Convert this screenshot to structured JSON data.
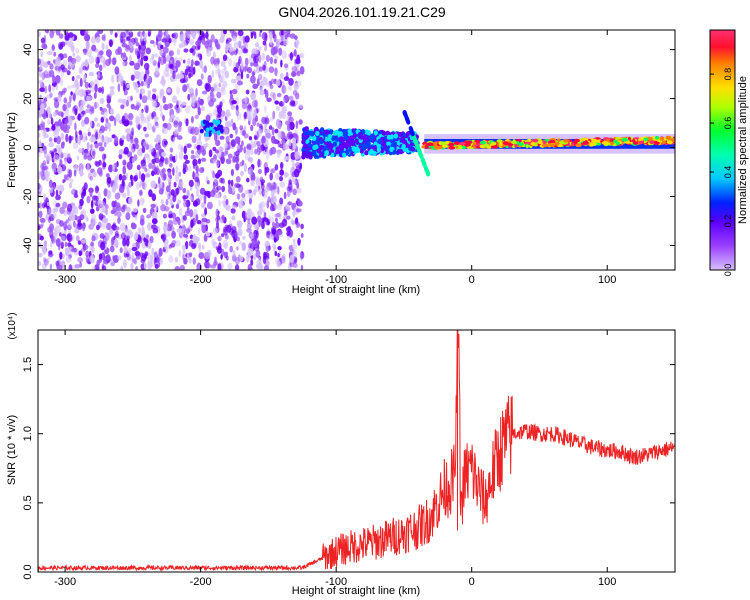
{
  "page": {
    "title": "GN04.2026.101.19.21.C29"
  },
  "chart_data": [
    {
      "type": "heatmap",
      "xlabel": "Height of straight line (km)",
      "ylabel": "Frequency (Hz)",
      "xlim": [
        -320,
        150
      ],
      "ylim": [
        -50,
        48
      ],
      "xticks": [
        -300,
        -200,
        -100,
        0,
        100
      ],
      "yticks": [
        -40,
        -20,
        0,
        20,
        40
      ],
      "colorbar": {
        "label": "Normalized spectral amplitude",
        "range": [
          0.0,
          0.98
        ],
        "ticks": [
          0.0,
          0.2,
          0.4,
          0.6,
          0.8
        ],
        "colormap": [
          "#c9a8ff",
          "#7a00ff",
          "#0000ff",
          "#00e0ff",
          "#00ff60",
          "#b0ff00",
          "#ffe000",
          "#ff8000",
          "#ff0040",
          "#ff3070"
        ]
      },
      "regions": [
        {
          "x_range": [
            -320,
            -125
          ],
          "freq_range": [
            -50,
            48
          ],
          "amplitude": 0.1
        },
        {
          "x_range": [
            -125,
            -40
          ],
          "freq_range": [
            -10,
            10
          ],
          "amplitude": 0.35
        },
        {
          "x_range": [
            -35,
            150
          ],
          "freq_range": [
            -2,
            5
          ],
          "amplitude": 0.75
        }
      ],
      "grid": false
    },
    {
      "type": "line",
      "xlabel": "Height of straight line (km)",
      "ylabel": "SNR (10 * v/v)",
      "y_multiplier": "(x10⁴)",
      "xlim": [
        -320,
        150
      ],
      "ylim": [
        0,
        1.75
      ],
      "xticks": [
        -300,
        -200,
        -100,
        0,
        100
      ],
      "yticks": [
        0.0,
        0.5,
        1.0,
        1.5
      ],
      "ytick_labels": [
        "0.0",
        "0.5",
        "1.0",
        "1.5"
      ],
      "series": [
        {
          "color": "#ee2222",
          "x": [
            -320,
            -300,
            -250,
            -200,
            -150,
            -125,
            -110,
            -100,
            -90,
            -80,
            -70,
            -60,
            -50,
            -40,
            -35,
            -30,
            -25,
            -20,
            -15,
            -12,
            -10,
            -8,
            -5,
            0,
            5,
            10,
            15,
            20,
            25,
            30,
            40,
            50,
            60,
            70,
            80,
            90,
            100,
            110,
            120,
            130,
            140,
            150
          ],
          "y": [
            0.03,
            0.03,
            0.03,
            0.03,
            0.03,
            0.03,
            0.1,
            0.15,
            0.18,
            0.2,
            0.22,
            0.25,
            0.28,
            0.32,
            0.35,
            0.4,
            0.5,
            0.6,
            0.65,
            0.7,
            1.75,
            0.45,
            0.7,
            0.75,
            0.6,
            0.5,
            0.7,
            0.85,
            0.95,
            1.0,
            1.02,
            1.0,
            1.0,
            0.97,
            0.93,
            0.9,
            0.88,
            0.87,
            0.83,
            0.85,
            0.88,
            0.9
          ]
        }
      ],
      "grid": false
    }
  ]
}
